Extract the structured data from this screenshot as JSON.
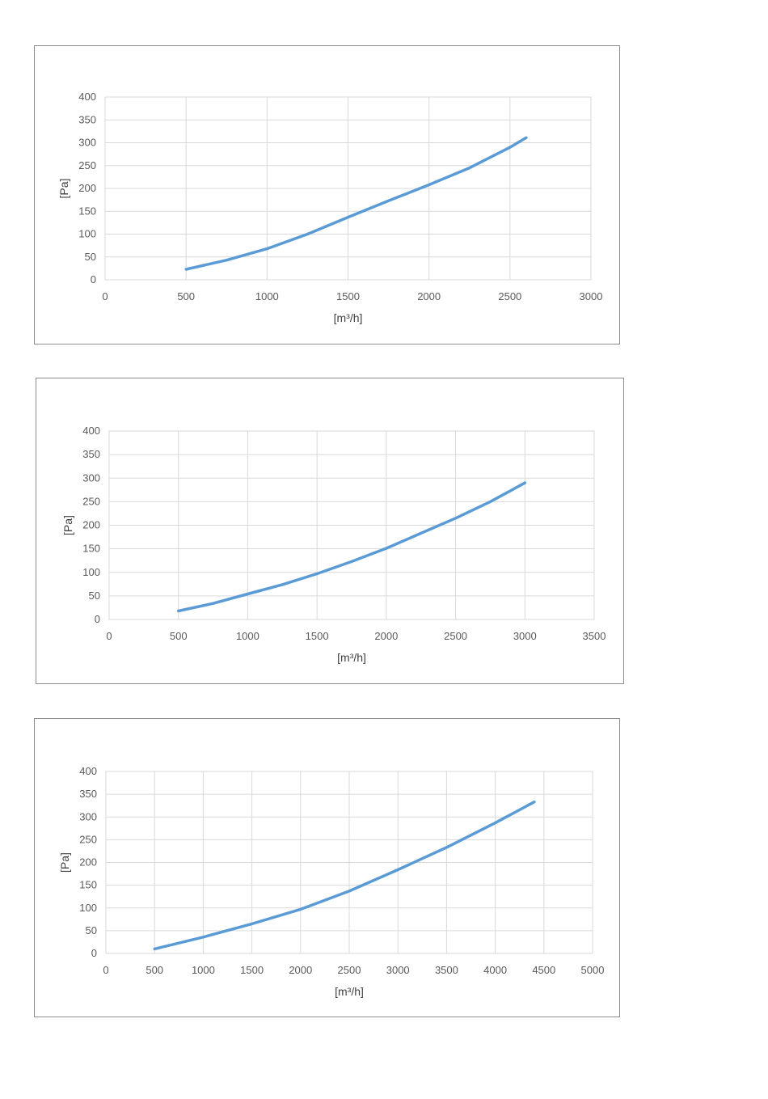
{
  "colors": {
    "line": "#5b9bd5",
    "grid": "#d9d9d9",
    "border": "#8c8c8c",
    "tick_text": "#595959"
  },
  "chart_data": [
    {
      "type": "line",
      "title": "",
      "xlabel": "[m³/h]",
      "ylabel": "[Pa]",
      "xlim": [
        0,
        3000
      ],
      "ylim": [
        0,
        400
      ],
      "x_ticks": [
        "0",
        "500",
        "1000",
        "1500",
        "2000",
        "2500",
        "3000"
      ],
      "y_ticks": [
        "0",
        "50",
        "100",
        "150",
        "200",
        "250",
        "300",
        "350",
        "400"
      ],
      "grid": true,
      "legend": "none",
      "series": [
        {
          "x": [
            500,
            750,
            1000,
            1250,
            1500,
            1750,
            2000,
            2250,
            2500,
            2600
          ],
          "y": [
            23,
            43,
            68,
            100,
            137,
            173,
            208,
            245,
            290,
            311
          ]
        }
      ]
    },
    {
      "type": "line",
      "title": "",
      "xlabel": "[m³/h]",
      "ylabel": "[Pa]",
      "xlim": [
        0,
        3500
      ],
      "ylim": [
        0,
        400
      ],
      "x_ticks": [
        "0",
        "500",
        "1000",
        "1500",
        "2000",
        "2500",
        "3000",
        "3500"
      ],
      "y_ticks": [
        "0",
        "50",
        "100",
        "150",
        "200",
        "250",
        "300",
        "350",
        "400"
      ],
      "grid": true,
      "legend": "none",
      "series": [
        {
          "x": [
            500,
            750,
            1000,
            1250,
            1500,
            1750,
            2000,
            2250,
            2500,
            2750,
            3000
          ],
          "y": [
            18,
            34,
            54,
            74,
            97,
            123,
            151,
            183,
            215,
            250,
            290
          ]
        }
      ]
    },
    {
      "type": "line",
      "title": "",
      "xlabel": "[m³/h]",
      "ylabel": "[Pa]",
      "xlim": [
        0,
        5000
      ],
      "ylim": [
        0,
        400
      ],
      "x_ticks": [
        "0",
        "500",
        "1000",
        "1500",
        "2000",
        "2500",
        "3000",
        "3500",
        "4000",
        "4500",
        "5000"
      ],
      "y_ticks": [
        "0",
        "50",
        "100",
        "150",
        "200",
        "250",
        "300",
        "350",
        "400"
      ],
      "grid": true,
      "legend": "none",
      "series": [
        {
          "x": [
            500,
            1000,
            1500,
            2000,
            2500,
            3000,
            3500,
            4000,
            4400
          ],
          "y": [
            10,
            36,
            65,
            97,
            137,
            184,
            233,
            287,
            333
          ]
        }
      ]
    }
  ]
}
